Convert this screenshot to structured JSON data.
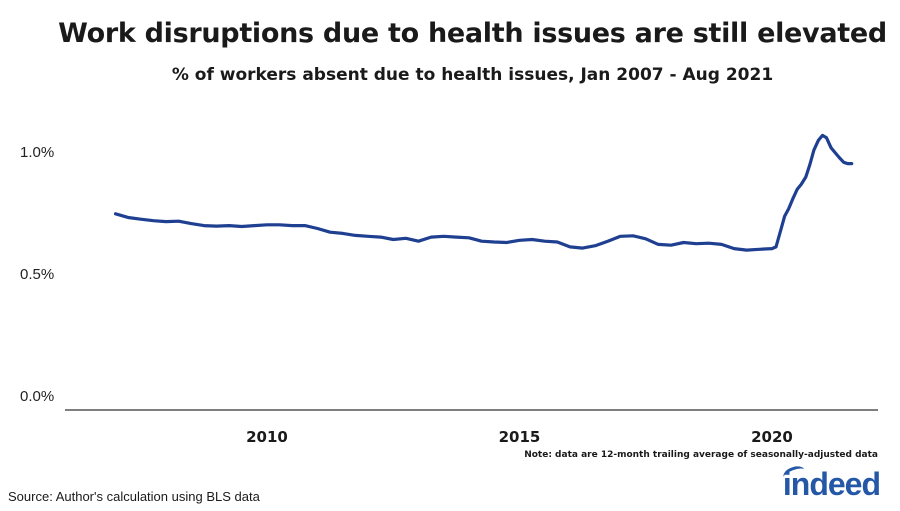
{
  "title": "Work disruptions due to health issues are still elevated",
  "subtitle": "% of workers absent due to health issues, Jan 2007 - Aug 2021",
  "note": "Note: data are 12-month trailing average of seasonally-adjusted data",
  "source": "Source: Author's calculation using BLS data",
  "logo_text": "indeed",
  "colors": {
    "line": "#1f3f91",
    "axis": "#333333",
    "logo": "#2557a7"
  },
  "chart_data": {
    "type": "line",
    "title": "Work disruptions due to health issues are still elevated",
    "subtitle": "% of workers absent due to health issues, Jan 2007 - Aug 2021",
    "xlabel": "",
    "ylabel": "",
    "x_range": [
      2006.0,
      2022.1
    ],
    "ylim": [
      0.0,
      1.1
    ],
    "y_ticks": [
      0.0,
      0.5,
      1.0
    ],
    "y_tick_labels": [
      "0.0%",
      "0.5%",
      "1.0%"
    ],
    "x_ticks": [
      2010,
      2015,
      2020
    ],
    "x_tick_labels": [
      "2010",
      "2015",
      "2020"
    ],
    "grid": false,
    "series": [
      {
        "x": [
          2007.0,
          2007.25,
          2007.5,
          2007.75,
          2008.0,
          2008.25,
          2008.5,
          2008.75,
          2009.0,
          2009.25,
          2009.5,
          2009.75,
          2010.0,
          2010.25,
          2010.5,
          2010.75,
          2011.0,
          2011.25,
          2011.5,
          2011.75,
          2012.0,
          2012.25,
          2012.5,
          2012.75,
          2013.0,
          2013.25,
          2013.5,
          2013.75,
          2014.0,
          2014.25,
          2014.5,
          2014.75,
          2015.0,
          2015.25,
          2015.5,
          2015.75,
          2016.0,
          2016.25,
          2016.5,
          2016.75,
          2017.0,
          2017.25,
          2017.5,
          2017.75,
          2018.0,
          2018.25,
          2018.5,
          2018.75,
          2019.0,
          2019.25,
          2019.5,
          2019.75,
          2020.0,
          2020.08,
          2020.17,
          2020.25,
          2020.33,
          2020.42,
          2020.5,
          2020.58,
          2020.67,
          2020.75,
          2020.83,
          2020.92,
          2021.0,
          2021.08,
          2021.17,
          2021.25,
          2021.33,
          2021.42,
          2021.5,
          2021.58
        ],
        "values": [
          0.76,
          0.745,
          0.738,
          0.732,
          0.728,
          0.73,
          0.72,
          0.712,
          0.71,
          0.712,
          0.708,
          0.712,
          0.715,
          0.715,
          0.712,
          0.712,
          0.7,
          0.685,
          0.68,
          0.672,
          0.668,
          0.665,
          0.655,
          0.66,
          0.648,
          0.665,
          0.668,
          0.665,
          0.662,
          0.648,
          0.645,
          0.643,
          0.652,
          0.655,
          0.648,
          0.645,
          0.625,
          0.62,
          0.63,
          0.648,
          0.668,
          0.67,
          0.658,
          0.635,
          0.632,
          0.643,
          0.638,
          0.64,
          0.635,
          0.618,
          0.612,
          0.615,
          0.618,
          0.625,
          0.69,
          0.75,
          0.78,
          0.825,
          0.86,
          0.88,
          0.91,
          0.96,
          1.02,
          1.06,
          1.08,
          1.07,
          1.03,
          1.01,
          0.99,
          0.97,
          0.965,
          0.965
        ]
      }
    ]
  }
}
